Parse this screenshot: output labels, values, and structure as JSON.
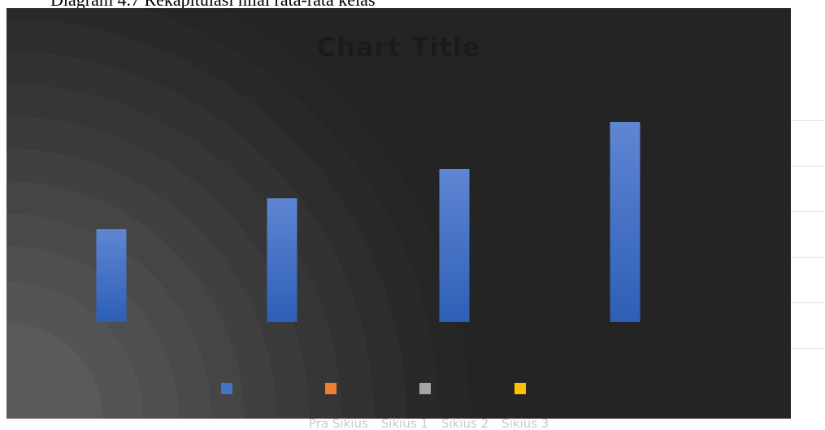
{
  "caption": "Diagram 4.7 Rekapitulasi nilai rata-rata kelas",
  "chart_data": {
    "type": "bar",
    "title": "Chart Title",
    "categories": [
      "Pra Sikius",
      "Sikius 1",
      "Sikius 2",
      "Sikius 3"
    ],
    "series": [
      {
        "values": [
          57,
          76,
          94,
          123
        ],
        "color": "#4472c4"
      }
    ],
    "legend_markers": [
      "#4472c4",
      "#ed7d31",
      "#a5a5a5",
      "#ffc000"
    ],
    "legend": "bottom",
    "ylim": [
      0,
      140
    ],
    "grid": false
  }
}
